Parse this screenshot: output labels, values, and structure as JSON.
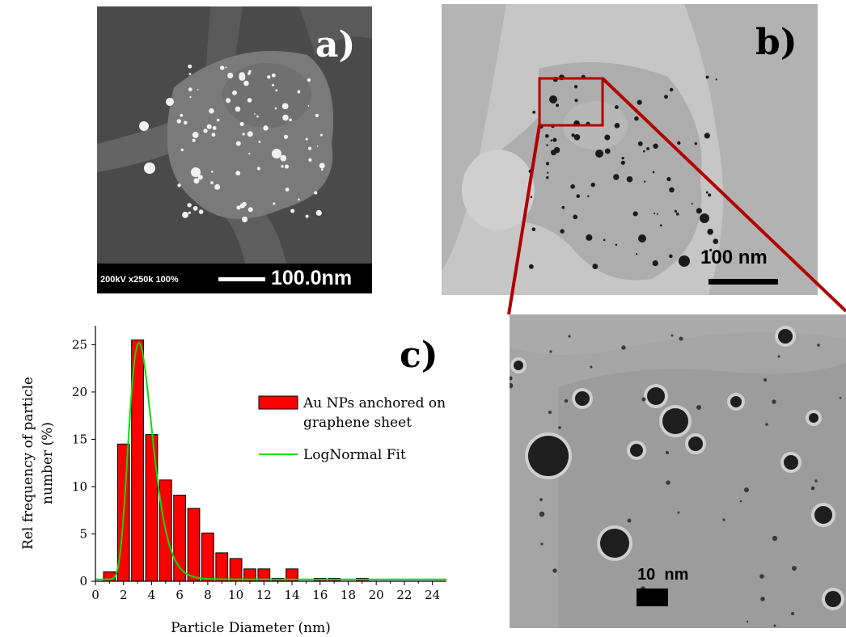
{
  "figure": {
    "panel_a": {
      "letter": "a)",
      "scale_info": "200kV x250k 100%",
      "scale_label": "100.0nm"
    },
    "panel_b": {
      "letter": "b)",
      "scale_label": "100 nm"
    },
    "panel_c": {
      "letter": "c)"
    },
    "panel_d": {
      "scale_label": "10  nm"
    },
    "colors": {
      "bar_fill": "#ff0000",
      "fit_line": "#00e000",
      "zoom_box": "#b00000"
    }
  },
  "chart_data": {
    "type": "bar",
    "xlabel": "Particle Diameter (nm)",
    "ylabel": "Rel frequency of particle number (%)",
    "ylabel_lines": [
      "Rel frequency of particle",
      "number (%)"
    ],
    "xlim": [
      0,
      25
    ],
    "ylim": [
      0,
      27
    ],
    "xticks": [
      0,
      2,
      4,
      6,
      8,
      10,
      12,
      14,
      16,
      18,
      20,
      22,
      24
    ],
    "yticks": [
      0,
      5,
      10,
      15,
      20,
      25
    ],
    "bar_width": 0.85,
    "x": [
      1,
      2,
      3,
      4,
      5,
      6,
      7,
      8,
      9,
      10,
      11,
      12,
      13,
      14,
      15,
      16,
      17,
      18,
      19,
      20
    ],
    "series": [
      {
        "name": "Au NPs anchored on graphene sheet",
        "legend_lines": [
          "Au NPs anchored on",
          "graphene sheet"
        ],
        "values": [
          1.0,
          14.5,
          25.5,
          15.5,
          10.7,
          9.1,
          7.7,
          5.1,
          3.0,
          2.4,
          1.3,
          1.3,
          0.3,
          1.3,
          0.0,
          0.3,
          0.3,
          0.0,
          0.3,
          0.0
        ]
      },
      {
        "name": "LogNormal Fit",
        "fit": {
          "peak_x": 3.1,
          "peak_y": 25.2,
          "sigma": 0.27,
          "offset": 0.2
        }
      }
    ]
  }
}
